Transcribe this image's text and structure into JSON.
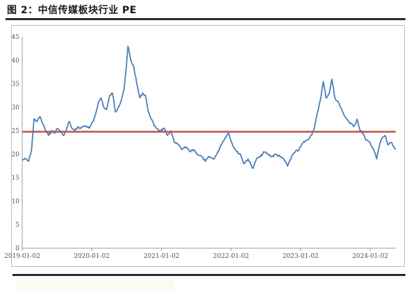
{
  "title": "图 2：中信传媒板块行业 PE",
  "chart_data": {
    "type": "line",
    "title": "图 2：中信传媒板块行业 PE",
    "xlabel": "",
    "ylabel": "",
    "ylim": [
      0,
      45
    ],
    "yticks": [
      "0",
      "5",
      "10",
      "15",
      "20",
      "25",
      "30",
      "35",
      "40",
      "45"
    ],
    "xticks": [
      "2019-01-02",
      "2020-01-02",
      "2021-01-02",
      "2022-01-02",
      "2023-01-02",
      "2024-01-02"
    ],
    "xlim": [
      "2019-01-02",
      "2024-05-15"
    ],
    "grid": false,
    "legend": "none",
    "series": [
      {
        "role": "pe",
        "color": "#4a7ebb",
        "points": [
          [
            "2019-01-02",
            18.8
          ],
          [
            "2019-01-20",
            19.0
          ],
          [
            "2019-02-05",
            18.5
          ],
          [
            "2019-02-20",
            21.0
          ],
          [
            "2019-03-05",
            27.5
          ],
          [
            "2019-03-20",
            27.0
          ],
          [
            "2019-04-05",
            28.0
          ],
          [
            "2019-04-20",
            26.5
          ],
          [
            "2019-05-05",
            25.0
          ],
          [
            "2019-05-20",
            24.0
          ],
          [
            "2019-06-05",
            25.0
          ],
          [
            "2019-06-20",
            24.5
          ],
          [
            "2019-07-05",
            25.5
          ],
          [
            "2019-07-20",
            25.0
          ],
          [
            "2019-08-05",
            24.0
          ],
          [
            "2019-08-20",
            25.0
          ],
          [
            "2019-09-05",
            27.0
          ],
          [
            "2019-09-20",
            25.5
          ],
          [
            "2019-10-05",
            25.0
          ],
          [
            "2019-10-20",
            25.8
          ],
          [
            "2019-11-05",
            25.5
          ],
          [
            "2019-11-20",
            26.0
          ],
          [
            "2019-12-05",
            26.0
          ],
          [
            "2019-12-20",
            25.5
          ],
          [
            "2020-01-10",
            27.0
          ],
          [
            "2020-01-25",
            29.0
          ],
          [
            "2020-02-05",
            31.0
          ],
          [
            "2020-02-20",
            32.0
          ],
          [
            "2020-03-05",
            30.0
          ],
          [
            "2020-03-20",
            29.5
          ],
          [
            "2020-04-05",
            32.5
          ],
          [
            "2020-04-20",
            33.0
          ],
          [
            "2020-05-05",
            29.0
          ],
          [
            "2020-05-20",
            30.0
          ],
          [
            "2020-06-05",
            31.5
          ],
          [
            "2020-06-20",
            34.0
          ],
          [
            "2020-07-01",
            38.5
          ],
          [
            "2020-07-10",
            43.0
          ],
          [
            "2020-07-25",
            40.0
          ],
          [
            "2020-08-10",
            38.5
          ],
          [
            "2020-08-25",
            35.0
          ],
          [
            "2020-09-10",
            32.0
          ],
          [
            "2020-09-25",
            33.0
          ],
          [
            "2020-10-10",
            32.5
          ],
          [
            "2020-10-25",
            29.0
          ],
          [
            "2020-11-10",
            27.5
          ],
          [
            "2020-11-25",
            26.0
          ],
          [
            "2020-12-10",
            25.5
          ],
          [
            "2020-12-25",
            25.0
          ],
          [
            "2021-01-15",
            25.5
          ],
          [
            "2021-02-01",
            24.0
          ],
          [
            "2021-02-20",
            25.0
          ],
          [
            "2021-03-10",
            22.5
          ],
          [
            "2021-04-01",
            22.0
          ],
          [
            "2021-04-20",
            21.0
          ],
          [
            "2021-05-10",
            21.5
          ],
          [
            "2021-06-01",
            20.5
          ],
          [
            "2021-06-20",
            21.0
          ],
          [
            "2021-07-10",
            20.0
          ],
          [
            "2021-08-01",
            19.5
          ],
          [
            "2021-08-20",
            18.5
          ],
          [
            "2021-09-10",
            19.5
          ],
          [
            "2021-10-01",
            19.0
          ],
          [
            "2021-10-20",
            20.0
          ],
          [
            "2021-11-10",
            22.0
          ],
          [
            "2021-12-01",
            23.5
          ],
          [
            "2021-12-20",
            24.5
          ],
          [
            "2022-01-10",
            22.0
          ],
          [
            "2022-02-01",
            20.5
          ],
          [
            "2022-02-20",
            20.0
          ],
          [
            "2022-03-10",
            18.0
          ],
          [
            "2022-04-01",
            19.0
          ],
          [
            "2022-04-25",
            17.0
          ],
          [
            "2022-05-15",
            19.0
          ],
          [
            "2022-06-05",
            19.5
          ],
          [
            "2022-06-25",
            20.5
          ],
          [
            "2022-07-15",
            20.0
          ],
          [
            "2022-08-05",
            19.5
          ],
          [
            "2022-08-25",
            20.0
          ],
          [
            "2022-09-15",
            19.5
          ],
          [
            "2022-10-05",
            19.0
          ],
          [
            "2022-10-25",
            17.5
          ],
          [
            "2022-11-15",
            19.5
          ],
          [
            "2022-12-05",
            20.5
          ],
          [
            "2022-12-25",
            21.0
          ],
          [
            "2023-01-15",
            22.5
          ],
          [
            "2023-02-05",
            23.0
          ],
          [
            "2023-02-25",
            24.0
          ],
          [
            "2023-03-15",
            25.5
          ],
          [
            "2023-04-01",
            29.0
          ],
          [
            "2023-04-15",
            31.5
          ],
          [
            "2023-05-01",
            35.5
          ],
          [
            "2023-05-15",
            32.0
          ],
          [
            "2023-06-01",
            33.0
          ],
          [
            "2023-06-15",
            36.0
          ],
          [
            "2023-07-01",
            32.0
          ],
          [
            "2023-07-20",
            31.0
          ],
          [
            "2023-08-10",
            29.0
          ],
          [
            "2023-09-01",
            27.5
          ],
          [
            "2023-09-20",
            26.5
          ],
          [
            "2023-10-10",
            26.0
          ],
          [
            "2023-10-25",
            27.5
          ],
          [
            "2023-11-10",
            25.0
          ],
          [
            "2023-11-25",
            24.5
          ],
          [
            "2023-12-10",
            23.0
          ],
          [
            "2024-01-01",
            22.5
          ],
          [
            "2024-01-20",
            21.0
          ],
          [
            "2024-02-05",
            19.0
          ],
          [
            "2024-02-20",
            22.0
          ],
          [
            "2024-03-05",
            23.5
          ],
          [
            "2024-03-20",
            24.0
          ],
          [
            "2024-04-05",
            22.0
          ],
          [
            "2024-04-20",
            22.5
          ],
          [
            "2024-05-05",
            21.5
          ],
          [
            "2024-05-15",
            21.0
          ]
        ]
      },
      {
        "role": "reference",
        "color": "#c0504d",
        "points": [
          [
            "2019-01-02",
            24.8
          ],
          [
            "2024-05-15",
            24.8
          ]
        ]
      }
    ]
  }
}
